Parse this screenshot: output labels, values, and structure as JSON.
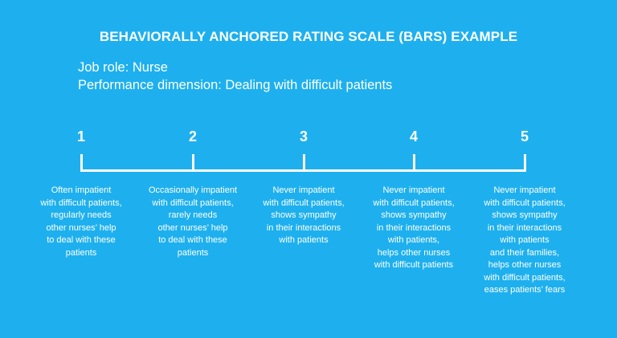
{
  "title": "BEHAVIORALLY ANCHORED RATING SCALE (BARS) EXAMPLE",
  "job_role": "Job role: Nurse",
  "performance_dimension": "Performance dimension: Dealing with difficult patients",
  "colors": {
    "background": "#1eb0ee",
    "foreground": "#ffffff"
  },
  "scale": [
    {
      "rating": "1",
      "lines": [
        "Often impatient",
        "with difficult patients,",
        "regularly needs",
        "other nurses’ help",
        "to deal with these",
        "patients"
      ]
    },
    {
      "rating": "2",
      "lines": [
        "Occasionally impatient",
        "with difficult patients,",
        "rarely needs",
        "other nurses’ help",
        "to deal with these",
        "patients"
      ]
    },
    {
      "rating": "3",
      "lines": [
        "Never impatient",
        "with difficult patients,",
        "shows sympathy",
        "in their interactions",
        "with patients"
      ]
    },
    {
      "rating": "4",
      "lines": [
        "Never impatient",
        "with difficult patients,",
        "shows sympathy",
        "in their interactions",
        "with patients,",
        "helps other nurses",
        "with difficult patients"
      ]
    },
    {
      "rating": "5",
      "lines": [
        "Never impatient",
        "with difficult patients,",
        "shows sympathy",
        "in their interactions",
        "with patients",
        "and their families,",
        "helps other nurses",
        "with difficult patients,",
        "eases patients’ fears"
      ]
    }
  ]
}
